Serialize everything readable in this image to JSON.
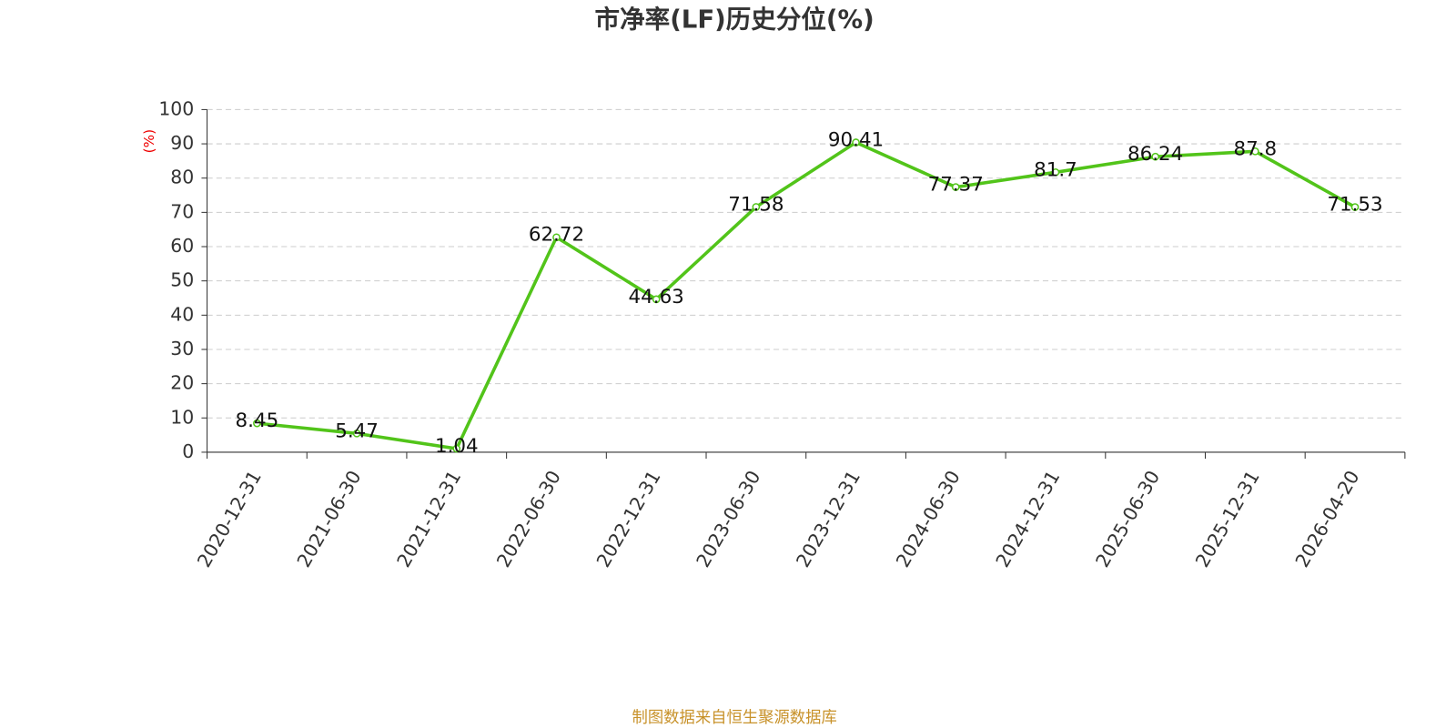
{
  "chart_data": {
    "type": "line",
    "title": "市净率(LF)历史分位(%)",
    "y_label": "(%)",
    "source": "制图数据来自恒生聚源数据库",
    "categories": [
      "2020-12-31",
      "2021-06-30",
      "2021-12-31",
      "2022-06-30",
      "2022-12-31",
      "2023-06-30",
      "2023-12-31",
      "2024-06-30",
      "2024-12-31",
      "2025-06-30",
      "2025-12-31",
      "2026-04-20"
    ],
    "values": [
      8.45,
      5.47,
      1.04,
      62.72,
      44.63,
      71.58,
      90.41,
      77.37,
      81.7,
      86.24,
      87.8,
      71.53
    ],
    "color": "#52c41a",
    "ylim": [
      0,
      100
    ],
    "yticks": [
      0,
      10,
      20,
      30,
      40,
      50,
      60,
      70,
      80,
      90,
      100
    ],
    "grid": true
  }
}
